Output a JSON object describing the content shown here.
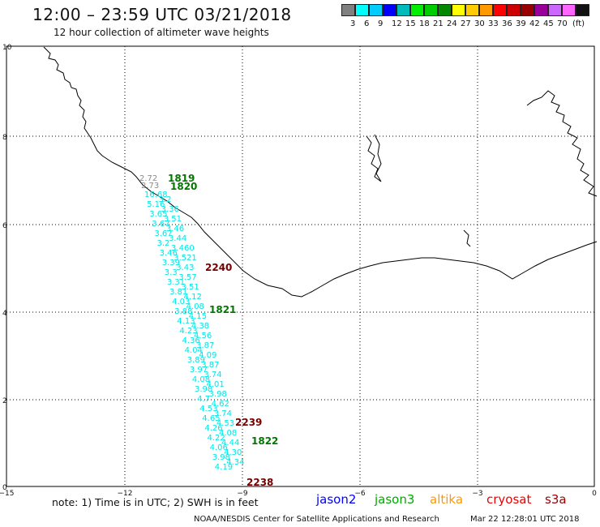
{
  "header": {
    "title": "12:00 – 23:59 UTC 03/21/2018",
    "subtitle": "12 hour collection of altimeter wave heights"
  },
  "color_scale": {
    "colors": [
      "#808080",
      "#00ffff",
      "#00ccff",
      "#0000ff",
      "#00bbbb",
      "#00ee00",
      "#00cc00",
      "#008800",
      "#ffff00",
      "#ffcc00",
      "#ff9900",
      "#ff0000",
      "#cc0000",
      "#990000",
      "#990099",
      "#cc66ff",
      "#ff66ff",
      "#111111"
    ],
    "labels": [
      "3",
      "6",
      "9",
      "12",
      "15",
      "18",
      "21",
      "24",
      "27",
      "30",
      "33",
      "36",
      "39",
      "42",
      "45",
      "70"
    ],
    "unit": "(ft)"
  },
  "map": {
    "y_ticks": [
      "10",
      "8",
      "6",
      "4",
      "2",
      "0"
    ],
    "x_ticks": [
      "−15",
      "−12",
      "−9",
      "−6",
      "−3",
      "0"
    ],
    "swh_color": "#00e6e6",
    "track_labels": [
      {
        "text": "1819",
        "color": "#007700"
      },
      {
        "text": "1820",
        "color": "#007700"
      },
      {
        "text": "2240",
        "color": "#770000"
      },
      {
        "text": "1821",
        "color": "#007700"
      },
      {
        "text": "2239",
        "color": "#770000"
      },
      {
        "text": "1822",
        "color": "#007700"
      },
      {
        "text": "2238",
        "color": "#770000"
      }
    ],
    "grey_values": [
      "2.72",
      "2.73"
    ],
    "swh_values": [
      "16.68",
      "3.2",
      "5.16",
      "3.36",
      "3.65",
      "3.51",
      "3.67",
      "3.46",
      "3.67",
      "3.44",
      "3.2",
      "3.460",
      "3.46",
      "3.521",
      "3.39",
      "3.43",
      "3.3",
      "3.57",
      "3.31",
      "3.51",
      "3.81",
      "4.12",
      "4.03",
      "4.08",
      "3.88",
      "4.15",
      "4.13",
      "4.38",
      "4.23",
      "4.56",
      "4.36",
      "3.87",
      "4.04",
      "4.09",
      "3.89",
      "3.87",
      "3.97",
      "3.74",
      "4.08",
      "4.01",
      "3.98",
      "3.98",
      "4.7",
      "4.62",
      "4.53",
      "3.74",
      "4.65",
      "4.53",
      "4.26",
      "4.08",
      "4.22",
      "4.44",
      "4.06",
      "4.30",
      "3.98",
      "4.34",
      "4.19"
    ]
  },
  "footer": {
    "note": "note:  1) Time is in UTC;  2) SWH is in feet",
    "legend": [
      {
        "label": "jason2",
        "color": "#0000ff"
      },
      {
        "label": "jason3",
        "color": "#00aa00"
      },
      {
        "label": "altika",
        "color": "#ff9900"
      },
      {
        "label": "cryosat",
        "color": "#ee0000"
      },
      {
        "label": "s3a",
        "color": "#990000"
      }
    ],
    "credit": "NOAA/NESDIS Center for Satellite Applications and Research",
    "timestamp": "Mar 22 12:28:01 UTC 2018"
  }
}
